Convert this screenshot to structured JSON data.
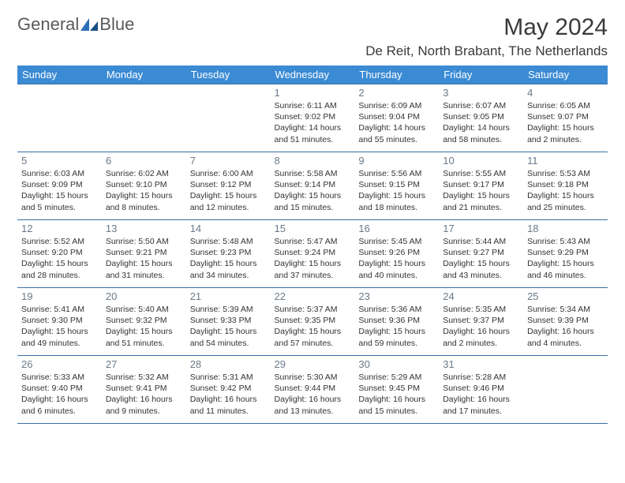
{
  "brand": {
    "word1": "General",
    "word2": "Blue"
  },
  "title": "May 2024",
  "location": "De Reit, North Brabant, The Netherlands",
  "colors": {
    "header_bg": "#3b8bd4",
    "header_text": "#ffffff",
    "border": "#3b6fa5",
    "daynum": "#6b7a8a",
    "body_text": "#333333",
    "brand_gray": "#5a5a5a",
    "brand_blue": "#2d6fb8"
  },
  "days_of_week": [
    "Sunday",
    "Monday",
    "Tuesday",
    "Wednesday",
    "Thursday",
    "Friday",
    "Saturday"
  ],
  "weeks": [
    [
      {
        "num": "",
        "sunrise": "",
        "sunset": "",
        "daylight": ""
      },
      {
        "num": "",
        "sunrise": "",
        "sunset": "",
        "daylight": ""
      },
      {
        "num": "",
        "sunrise": "",
        "sunset": "",
        "daylight": ""
      },
      {
        "num": "1",
        "sunrise": "Sunrise: 6:11 AM",
        "sunset": "Sunset: 9:02 PM",
        "daylight": "Daylight: 14 hours and 51 minutes."
      },
      {
        "num": "2",
        "sunrise": "Sunrise: 6:09 AM",
        "sunset": "Sunset: 9:04 PM",
        "daylight": "Daylight: 14 hours and 55 minutes."
      },
      {
        "num": "3",
        "sunrise": "Sunrise: 6:07 AM",
        "sunset": "Sunset: 9:05 PM",
        "daylight": "Daylight: 14 hours and 58 minutes."
      },
      {
        "num": "4",
        "sunrise": "Sunrise: 6:05 AM",
        "sunset": "Sunset: 9:07 PM",
        "daylight": "Daylight: 15 hours and 2 minutes."
      }
    ],
    [
      {
        "num": "5",
        "sunrise": "Sunrise: 6:03 AM",
        "sunset": "Sunset: 9:09 PM",
        "daylight": "Daylight: 15 hours and 5 minutes."
      },
      {
        "num": "6",
        "sunrise": "Sunrise: 6:02 AM",
        "sunset": "Sunset: 9:10 PM",
        "daylight": "Daylight: 15 hours and 8 minutes."
      },
      {
        "num": "7",
        "sunrise": "Sunrise: 6:00 AM",
        "sunset": "Sunset: 9:12 PM",
        "daylight": "Daylight: 15 hours and 12 minutes."
      },
      {
        "num": "8",
        "sunrise": "Sunrise: 5:58 AM",
        "sunset": "Sunset: 9:14 PM",
        "daylight": "Daylight: 15 hours and 15 minutes."
      },
      {
        "num": "9",
        "sunrise": "Sunrise: 5:56 AM",
        "sunset": "Sunset: 9:15 PM",
        "daylight": "Daylight: 15 hours and 18 minutes."
      },
      {
        "num": "10",
        "sunrise": "Sunrise: 5:55 AM",
        "sunset": "Sunset: 9:17 PM",
        "daylight": "Daylight: 15 hours and 21 minutes."
      },
      {
        "num": "11",
        "sunrise": "Sunrise: 5:53 AM",
        "sunset": "Sunset: 9:18 PM",
        "daylight": "Daylight: 15 hours and 25 minutes."
      }
    ],
    [
      {
        "num": "12",
        "sunrise": "Sunrise: 5:52 AM",
        "sunset": "Sunset: 9:20 PM",
        "daylight": "Daylight: 15 hours and 28 minutes."
      },
      {
        "num": "13",
        "sunrise": "Sunrise: 5:50 AM",
        "sunset": "Sunset: 9:21 PM",
        "daylight": "Daylight: 15 hours and 31 minutes."
      },
      {
        "num": "14",
        "sunrise": "Sunrise: 5:48 AM",
        "sunset": "Sunset: 9:23 PM",
        "daylight": "Daylight: 15 hours and 34 minutes."
      },
      {
        "num": "15",
        "sunrise": "Sunrise: 5:47 AM",
        "sunset": "Sunset: 9:24 PM",
        "daylight": "Daylight: 15 hours and 37 minutes."
      },
      {
        "num": "16",
        "sunrise": "Sunrise: 5:45 AM",
        "sunset": "Sunset: 9:26 PM",
        "daylight": "Daylight: 15 hours and 40 minutes."
      },
      {
        "num": "17",
        "sunrise": "Sunrise: 5:44 AM",
        "sunset": "Sunset: 9:27 PM",
        "daylight": "Daylight: 15 hours and 43 minutes."
      },
      {
        "num": "18",
        "sunrise": "Sunrise: 5:43 AM",
        "sunset": "Sunset: 9:29 PM",
        "daylight": "Daylight: 15 hours and 46 minutes."
      }
    ],
    [
      {
        "num": "19",
        "sunrise": "Sunrise: 5:41 AM",
        "sunset": "Sunset: 9:30 PM",
        "daylight": "Daylight: 15 hours and 49 minutes."
      },
      {
        "num": "20",
        "sunrise": "Sunrise: 5:40 AM",
        "sunset": "Sunset: 9:32 PM",
        "daylight": "Daylight: 15 hours and 51 minutes."
      },
      {
        "num": "21",
        "sunrise": "Sunrise: 5:39 AM",
        "sunset": "Sunset: 9:33 PM",
        "daylight": "Daylight: 15 hours and 54 minutes."
      },
      {
        "num": "22",
        "sunrise": "Sunrise: 5:37 AM",
        "sunset": "Sunset: 9:35 PM",
        "daylight": "Daylight: 15 hours and 57 minutes."
      },
      {
        "num": "23",
        "sunrise": "Sunrise: 5:36 AM",
        "sunset": "Sunset: 9:36 PM",
        "daylight": "Daylight: 15 hours and 59 minutes."
      },
      {
        "num": "24",
        "sunrise": "Sunrise: 5:35 AM",
        "sunset": "Sunset: 9:37 PM",
        "daylight": "Daylight: 16 hours and 2 minutes."
      },
      {
        "num": "25",
        "sunrise": "Sunrise: 5:34 AM",
        "sunset": "Sunset: 9:39 PM",
        "daylight": "Daylight: 16 hours and 4 minutes."
      }
    ],
    [
      {
        "num": "26",
        "sunrise": "Sunrise: 5:33 AM",
        "sunset": "Sunset: 9:40 PM",
        "daylight": "Daylight: 16 hours and 6 minutes."
      },
      {
        "num": "27",
        "sunrise": "Sunrise: 5:32 AM",
        "sunset": "Sunset: 9:41 PM",
        "daylight": "Daylight: 16 hours and 9 minutes."
      },
      {
        "num": "28",
        "sunrise": "Sunrise: 5:31 AM",
        "sunset": "Sunset: 9:42 PM",
        "daylight": "Daylight: 16 hours and 11 minutes."
      },
      {
        "num": "29",
        "sunrise": "Sunrise: 5:30 AM",
        "sunset": "Sunset: 9:44 PM",
        "daylight": "Daylight: 16 hours and 13 minutes."
      },
      {
        "num": "30",
        "sunrise": "Sunrise: 5:29 AM",
        "sunset": "Sunset: 9:45 PM",
        "daylight": "Daylight: 16 hours and 15 minutes."
      },
      {
        "num": "31",
        "sunrise": "Sunrise: 5:28 AM",
        "sunset": "Sunset: 9:46 PM",
        "daylight": "Daylight: 16 hours and 17 minutes."
      },
      {
        "num": "",
        "sunrise": "",
        "sunset": "",
        "daylight": ""
      }
    ]
  ]
}
